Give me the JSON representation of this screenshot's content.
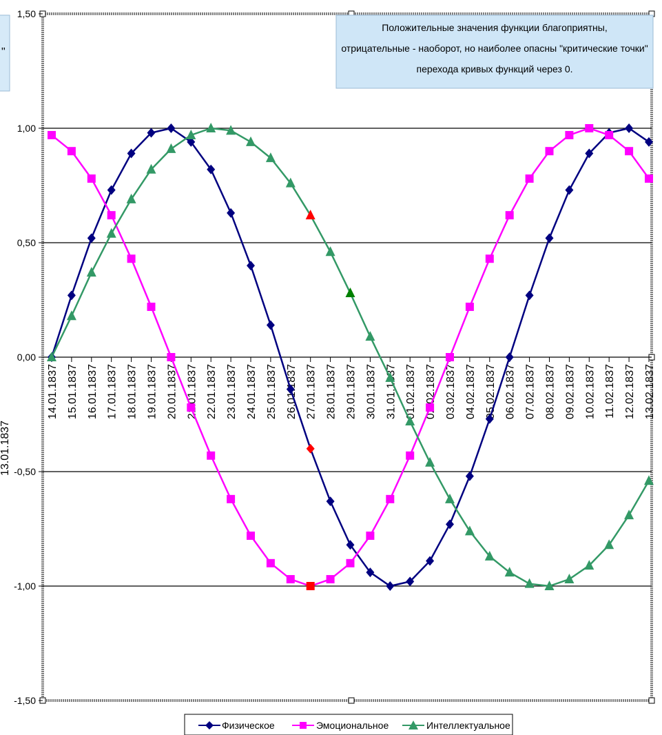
{
  "chart_data": {
    "type": "line",
    "title": "",
    "xlabel": "",
    "ylabel": "",
    "ylim": [
      -1.5,
      1.5
    ],
    "yticks": [
      "1,50",
      "1,00",
      "0,50",
      "0,00",
      "-0,50",
      "-1,00",
      "-1,50"
    ],
    "ytick_values": [
      1.5,
      1.0,
      0.5,
      0.0,
      -0.5,
      -1.0,
      -1.5
    ],
    "gridlines": "horizontal at ±1,00 and ±0,50",
    "legend_position": "bottom",
    "categories": [
      "14.01.1837",
      "15.01.1837",
      "16.01.1837",
      "17.01.1837",
      "18.01.1837",
      "19.01.1837",
      "20.01.1837",
      "21.01.1837",
      "22.01.1837",
      "23.01.1837",
      "24.01.1837",
      "25.01.1837",
      "26.01.1837",
      "27.01.1837",
      "28.01.1837",
      "29.01.1837",
      "30.01.1837",
      "31.01.1837",
      "01.02.1837",
      "02.02.1837",
      "03.02.1837",
      "04.02.1837",
      "05.02.1837",
      "06.02.1837",
      "07.02.1837",
      "08.02.1837",
      "09.02.1837",
      "10.02.1837",
      "11.02.1837",
      "12.02.1837",
      "13.02.1837"
    ],
    "series": [
      {
        "name": "Физическое",
        "color": "#000080",
        "marker": "diamond",
        "values": [
          0.0,
          0.27,
          0.52,
          0.73,
          0.89,
          0.98,
          1.0,
          0.94,
          0.82,
          0.63,
          0.4,
          0.14,
          -0.14,
          -0.4,
          -0.63,
          -0.82,
          -0.94,
          -1.0,
          -0.98,
          -0.89,
          -0.73,
          -0.52,
          -0.27,
          0.0,
          0.27,
          0.52,
          0.73,
          0.89,
          0.98,
          1.0,
          0.94
        ]
      },
      {
        "name": "Эмоциональное",
        "color": "#ff00ff",
        "marker": "square",
        "values": [
          0.97,
          0.9,
          0.78,
          0.62,
          0.43,
          0.22,
          0.0,
          -0.22,
          -0.43,
          -0.62,
          -0.78,
          -0.9,
          -0.97,
          -1.0,
          -0.97,
          -0.9,
          -0.78,
          -0.62,
          -0.43,
          -0.22,
          0.0,
          0.22,
          0.43,
          0.62,
          0.78,
          0.9,
          0.97,
          1.0,
          0.97,
          0.9,
          0.78
        ]
      },
      {
        "name": "Интеллектуальное",
        "color": "#339966",
        "marker": "triangle",
        "values": [
          0.0,
          0.18,
          0.37,
          0.54,
          0.69,
          0.82,
          0.91,
          0.97,
          1.0,
          0.99,
          0.94,
          0.87,
          0.76,
          0.62,
          0.46,
          0.28,
          0.09,
          -0.09,
          -0.28,
          -0.46,
          -0.62,
          -0.76,
          -0.87,
          -0.94,
          -0.99,
          -1.0,
          -0.97,
          -0.91,
          -0.82,
          -0.69,
          -0.54
        ]
      }
    ],
    "highlights": [
      {
        "series": 0,
        "index": 13,
        "color": "#ff0000"
      },
      {
        "series": 1,
        "index": 13,
        "color": "#ff0000"
      },
      {
        "series": 2,
        "index": 13,
        "color": "#ff0000"
      },
      {
        "series": 2,
        "index": 15,
        "color": "#008000"
      }
    ],
    "annotation": {
      "lines": [
        "Положительные значения функции благоприятны,",
        "отрицательные - наоборот, но наиболее опасны \"критические точки\"",
        "перехода кривых функций через 0."
      ],
      "fill": "#cfe6f7"
    },
    "left_panel_fragments": {
      "quote": "\"",
      "date": "13.01.1837"
    }
  }
}
